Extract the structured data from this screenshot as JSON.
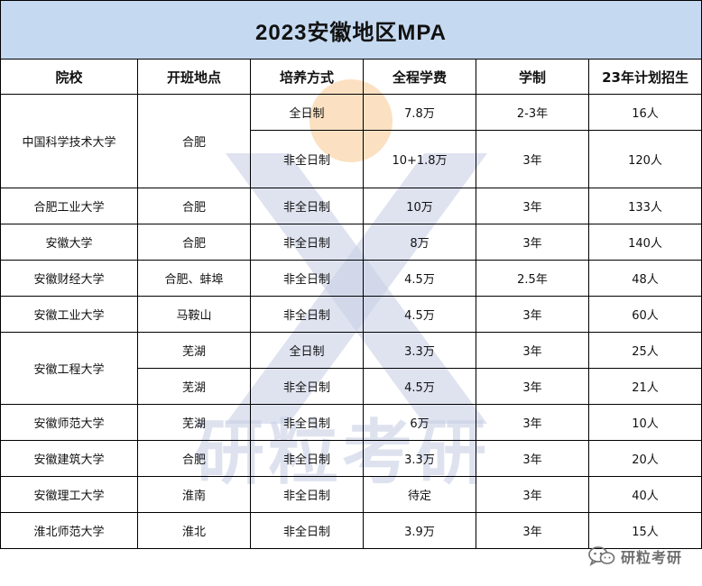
{
  "title": "2023安徽地区MPA",
  "headers": [
    "院校",
    "开班地点",
    "培养方式",
    "全程学费",
    "学制",
    "23年计划招生"
  ],
  "rows": [
    {
      "school": "中国科学技术大学",
      "location": "合肥",
      "mode": "全日制",
      "fee": "7.8万",
      "duration": "2-3年",
      "plan": "16人"
    },
    {
      "mode": "非全日制",
      "fee": "10+1.8万",
      "duration": "3年",
      "plan": "120人"
    },
    {
      "school": "合肥工业大学",
      "location": "合肥",
      "mode": "非全日制",
      "fee": "10万",
      "duration": "3年",
      "plan": "133人"
    },
    {
      "school": "安徽大学",
      "location": "合肥",
      "mode": "非全日制",
      "fee": "8万",
      "duration": "3年",
      "plan": "140人"
    },
    {
      "school": "安徽财经大学",
      "location": "合肥、蚌埠",
      "mode": "非全日制",
      "fee": "4.5万",
      "duration": "2.5年",
      "plan": "48人"
    },
    {
      "school": "安徽工业大学",
      "location": "马鞍山",
      "mode": "非全日制",
      "fee": "4.5万",
      "duration": "3年",
      "plan": "60人"
    },
    {
      "school": "安徽工程大学",
      "location": "芜湖",
      "mode": "全日制",
      "fee": "3.3万",
      "duration": "3年",
      "plan": "25人"
    },
    {
      "location": "芜湖",
      "mode": "非全日制",
      "fee": "4.5万",
      "duration": "3年",
      "plan": "21人"
    },
    {
      "school": "安徽师范大学",
      "location": "芜湖",
      "mode": "非全日制",
      "fee": "6万",
      "duration": "3年",
      "plan": "10人"
    },
    {
      "school": "安徽建筑大学",
      "location": "合肥",
      "mode": "非全日制",
      "fee": "3.3万",
      "duration": "3年",
      "plan": "20人"
    },
    {
      "school": "安徽理工大学",
      "location": "淮南",
      "mode": "非全日制",
      "fee": "待定",
      "duration": "3年",
      "plan": "40人"
    },
    {
      "school": "淮北师范大学",
      "location": "淮北",
      "mode": "非全日制",
      "fee": "3.9万",
      "duration": "3年",
      "plan": "15人"
    }
  ],
  "watermark": {
    "text": "研粒考研",
    "letter": "X",
    "color": "#c9d0e6",
    "accent": "#f7c98f"
  },
  "footer": {
    "icon": "wechat-icon",
    "text": "研粒考研"
  },
  "colors": {
    "title_bg": "#c5d9f1"
  }
}
